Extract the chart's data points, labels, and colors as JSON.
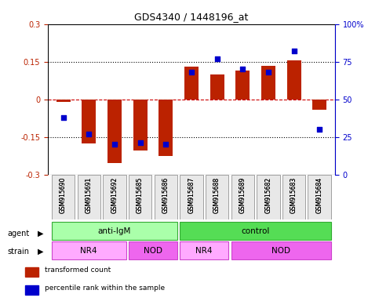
{
  "title": "GDS4340 / 1448196_at",
  "samples": [
    "GSM915690",
    "GSM915691",
    "GSM915692",
    "GSM915685",
    "GSM915686",
    "GSM915687",
    "GSM915688",
    "GSM915689",
    "GSM915682",
    "GSM915683",
    "GSM915684"
  ],
  "bar_values": [
    -0.01,
    -0.175,
    -0.255,
    -0.205,
    -0.225,
    0.13,
    0.1,
    0.115,
    0.135,
    0.155,
    -0.04
  ],
  "dot_values": [
    38,
    27,
    20,
    21,
    20,
    68,
    77,
    70,
    68,
    82,
    30
  ],
  "bar_color": "#bb2200",
  "dot_color": "#0000cc",
  "ylim": [
    -0.3,
    0.3
  ],
  "y2lim": [
    0,
    100
  ],
  "yticks": [
    -0.3,
    -0.15,
    0.0,
    0.15,
    0.3
  ],
  "ytick_labels": [
    "-0.3",
    "-0.15",
    "0",
    "0.15",
    "0.3"
  ],
  "y2ticks": [
    0,
    25,
    50,
    75,
    100
  ],
  "y2tick_labels": [
    "0",
    "25",
    "50",
    "75",
    "100%"
  ],
  "hlines": [
    -0.15,
    0.0,
    0.15
  ],
  "hline_styles": [
    "dotted",
    "dashed",
    "dotted"
  ],
  "agent_labels": [
    {
      "label": "anti-IgM",
      "start": 0,
      "end": 5
    },
    {
      "label": "control",
      "start": 5,
      "end": 11
    }
  ],
  "agent_colors": [
    "#aaffaa",
    "#55dd55"
  ],
  "strain_labels": [
    {
      "label": "NR4",
      "start": 0,
      "end": 3,
      "color": "#ffaaff"
    },
    {
      "label": "NOD",
      "start": 3,
      "end": 5,
      "color": "#ee66ee"
    },
    {
      "label": "NR4",
      "start": 5,
      "end": 7,
      "color": "#ffaaff"
    },
    {
      "label": "NOD",
      "start": 7,
      "end": 11,
      "color": "#ee66ee"
    }
  ],
  "legend_items": [
    {
      "color": "#bb2200",
      "label": "transformed count"
    },
    {
      "color": "#0000cc",
      "label": "percentile rank within the sample"
    }
  ],
  "bar_width": 0.55,
  "ylabel_color": "#bb2200",
  "y2label_color": "#0000cc"
}
